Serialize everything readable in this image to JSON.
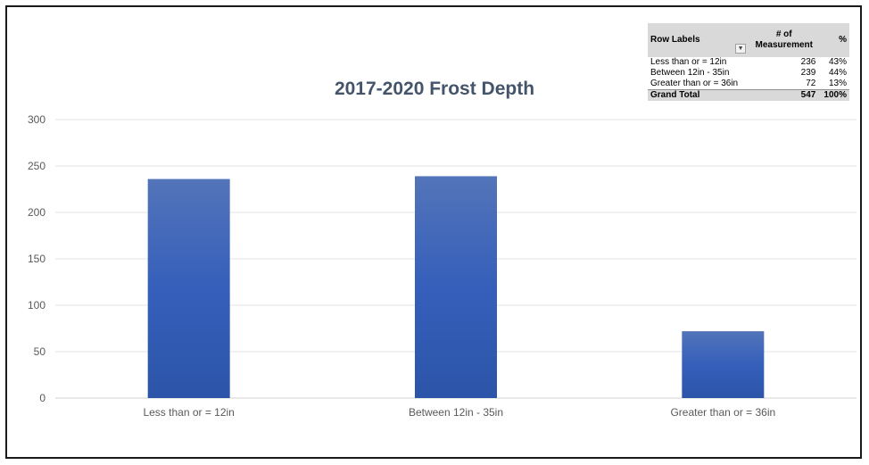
{
  "chart_data": {
    "type": "bar",
    "title": "2017-2020 Frost Depth",
    "categories": [
      "Less than or = 12in",
      "Between 12in - 35in",
      "Greater than or = 36in"
    ],
    "values": [
      236,
      239,
      72
    ],
    "ylim": [
      0,
      300
    ],
    "yticks": [
      0,
      50,
      100,
      150,
      200,
      250,
      300
    ],
    "grid": true,
    "bar_color": "#3a60b4"
  },
  "pivot_table": {
    "headers": {
      "row_labels": "Row Labels",
      "count_line1": "# of",
      "count_line2": "Measurement",
      "percent": "%"
    },
    "rows": [
      {
        "label": "Less than or = 12in",
        "count": "236",
        "percent": "43%"
      },
      {
        "label": "Between 12in - 35in",
        "count": "239",
        "percent": "44%"
      },
      {
        "label": "Greater than or = 36in",
        "count": "72",
        "percent": "13%"
      }
    ],
    "total": {
      "label": "Grand Total",
      "count": "547",
      "percent": "100%"
    }
  }
}
